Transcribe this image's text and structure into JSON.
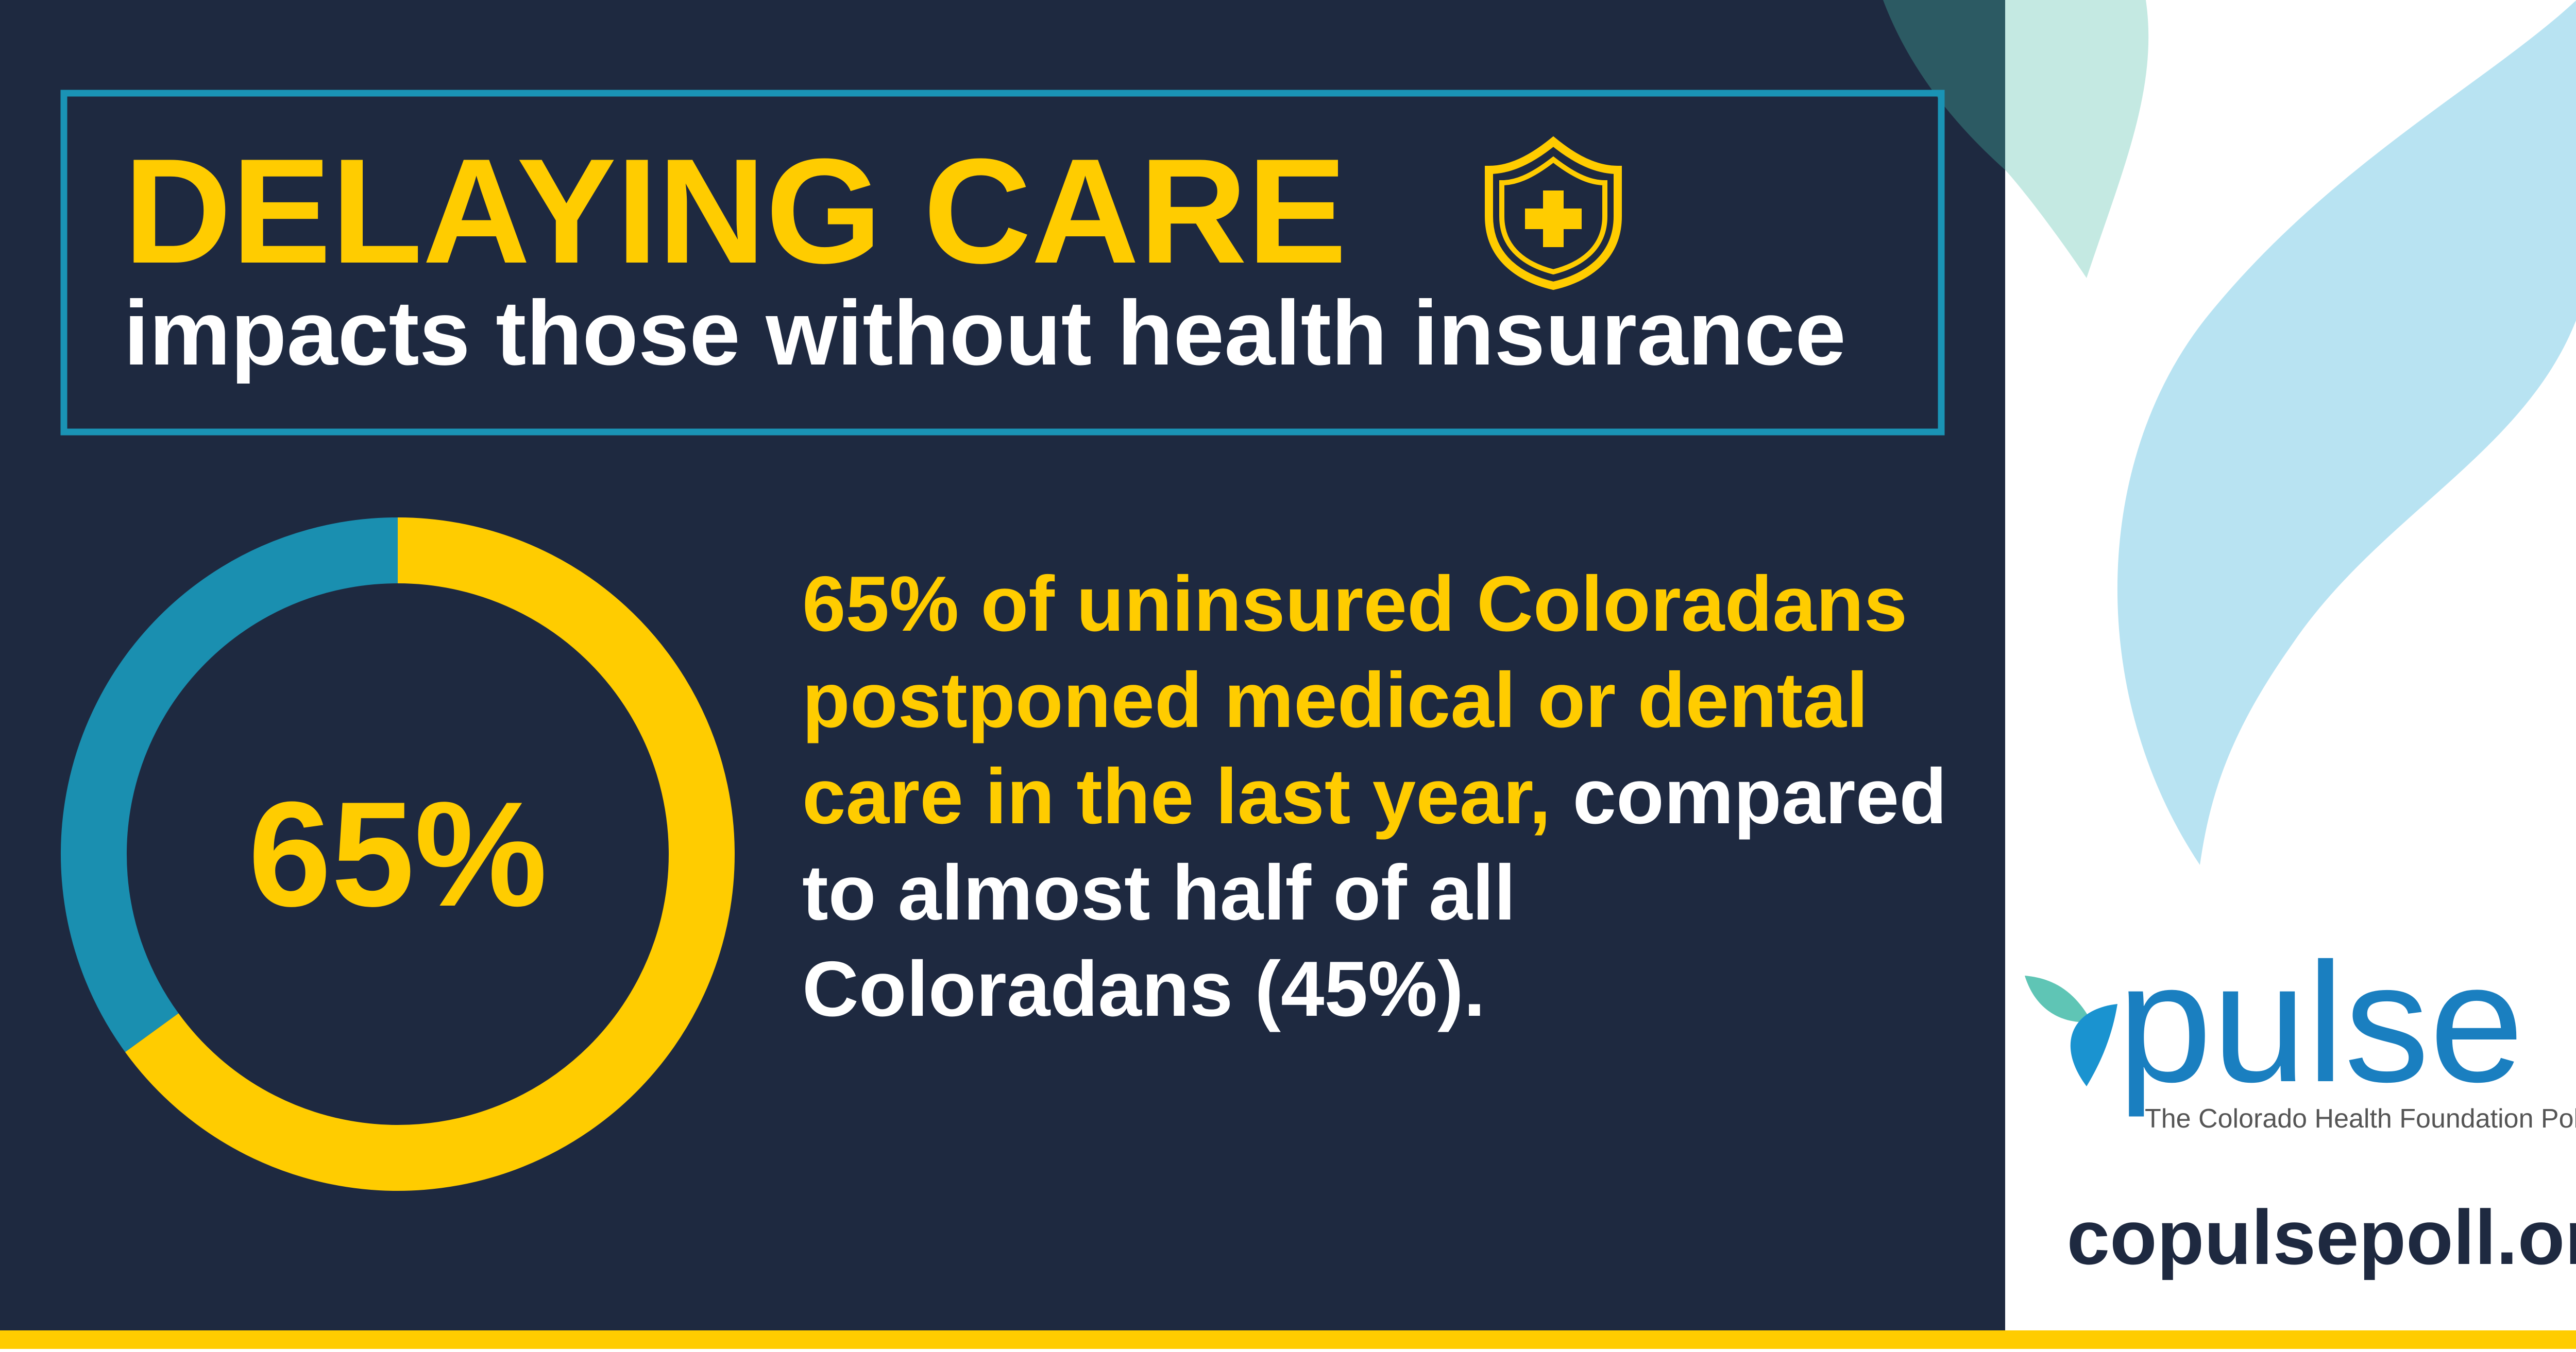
{
  "header": {
    "title": "DELAYING CARE",
    "subtitle": "impacts those without health insurance"
  },
  "body": {
    "highlight": "65% of uninsured Coloradans postponed medical or dental care in the last year,",
    "rest": "compared to almost half of all Coloradans (45%)."
  },
  "logo": {
    "name": "pulse",
    "tagline": "The Colorado Health Foundation Poll"
  },
  "url": "copulsepoll.org",
  "chart_data": {
    "type": "donut",
    "categories": [
      null,
      null
    ],
    "values": [
      65,
      35
    ],
    "value_labels": [
      "65%",
      null
    ],
    "colors": [
      "#ffcc00",
      "#1a8fb0"
    ]
  }
}
